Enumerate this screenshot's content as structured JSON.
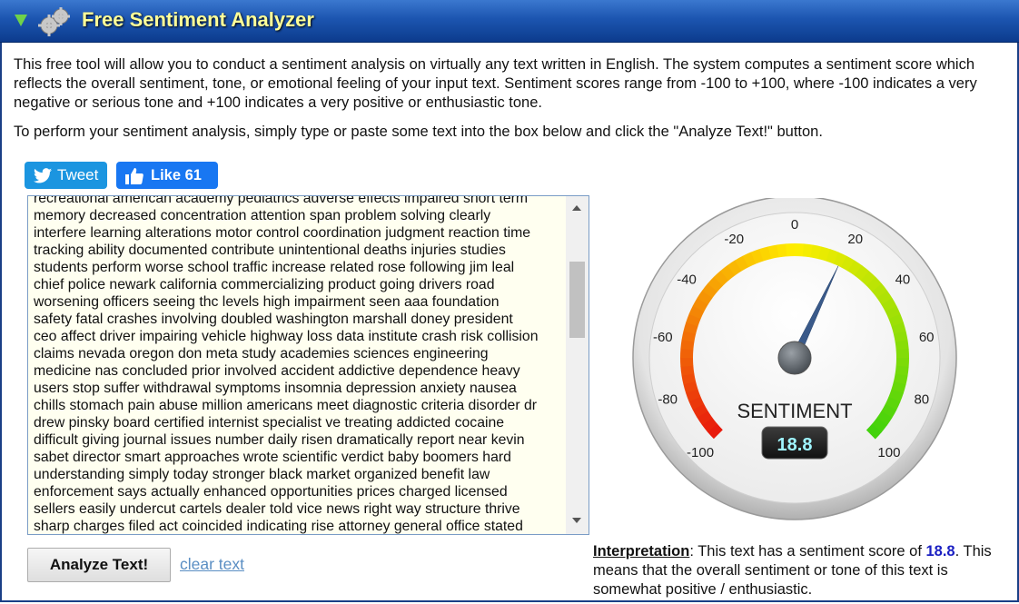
{
  "window": {
    "title": "Free Sentiment Analyzer"
  },
  "intro": {
    "paragraph1": "This free tool will allow you to conduct a sentiment analysis on virtually any text written in English. The system computes a sentiment score which reflects the overall sentiment, tone, or emotional feeling of your input text. Sentiment scores range from -100 to +100, where -100 indicates a very negative or serious tone and +100 indicates a very positive or enthusiastic tone.",
    "paragraph2": "To perform your sentiment analysis, simply type or paste some text into the box below and click the \"Analyze Text!\" button."
  },
  "social": {
    "tweet_label": "Tweet",
    "like_label": "Like 61"
  },
  "input": {
    "value": "recreational american academy pediatrics adverse effects impaired short term\nmemory decreased concentration attention span problem solving clearly\ninterfere learning alterations motor control coordination judgment reaction time\ntracking ability documented contribute unintentional deaths injuries studies\nstudents perform worse school traffic increase related rose following jim leal\nchief police newark california commercializing product going drivers road\nworsening officers seeing thc levels high impairment seen aaa foundation\nsafety fatal crashes involving doubled washington marshall doney president\nceo affect driver impairing vehicle highway loss data institute crash risk collision\nclaims nevada oregon don meta study academies sciences engineering\nmedicine nas concluded prior involved accident addictive dependence heavy\nusers stop suffer withdrawal symptoms insomnia depression anxiety nausea\nchills stomach pain abuse million americans meet diagnostic criteria disorder dr\ndrew pinsky board certified internist specialist ve treating addicted cocaine\ndifficult giving journal issues number daily risen dramatically report near kevin\nsabet director smart approaches wrote scientific verdict baby boomers hard\nunderstanding simply today stronger black market organized benefit law\nenforcement says actually enhanced opportunities prices charged licensed\nsellers easily undercut cartels dealer told vice news right way structure thrive\nsharp charges filed act coincided indicating rise attorney general office stated"
  },
  "buttons": {
    "analyze_label": "Analyze Text!",
    "clear_label": "clear text"
  },
  "gauge": {
    "label": "SENTIMENT",
    "value": 18.8,
    "value_text": "18.8",
    "min": -100,
    "max": 100,
    "ticks": [
      "-100",
      "-80",
      "-60",
      "-40",
      "-20",
      "0",
      "20",
      "40",
      "60",
      "80",
      "100"
    ],
    "colors": {
      "negative": "#e8160c",
      "neutral": "#ffee00",
      "positive": "#3fd20c",
      "needle": "#3a5a8a",
      "readout": "#9ff5ff"
    }
  },
  "interpretation": {
    "heading": "Interpretation",
    "text_before": ": This text has a sentiment score of ",
    "score": "18.8",
    "text_after": ". This means that the overall sentiment or tone of this text is somewhat positive / enthusiastic."
  }
}
